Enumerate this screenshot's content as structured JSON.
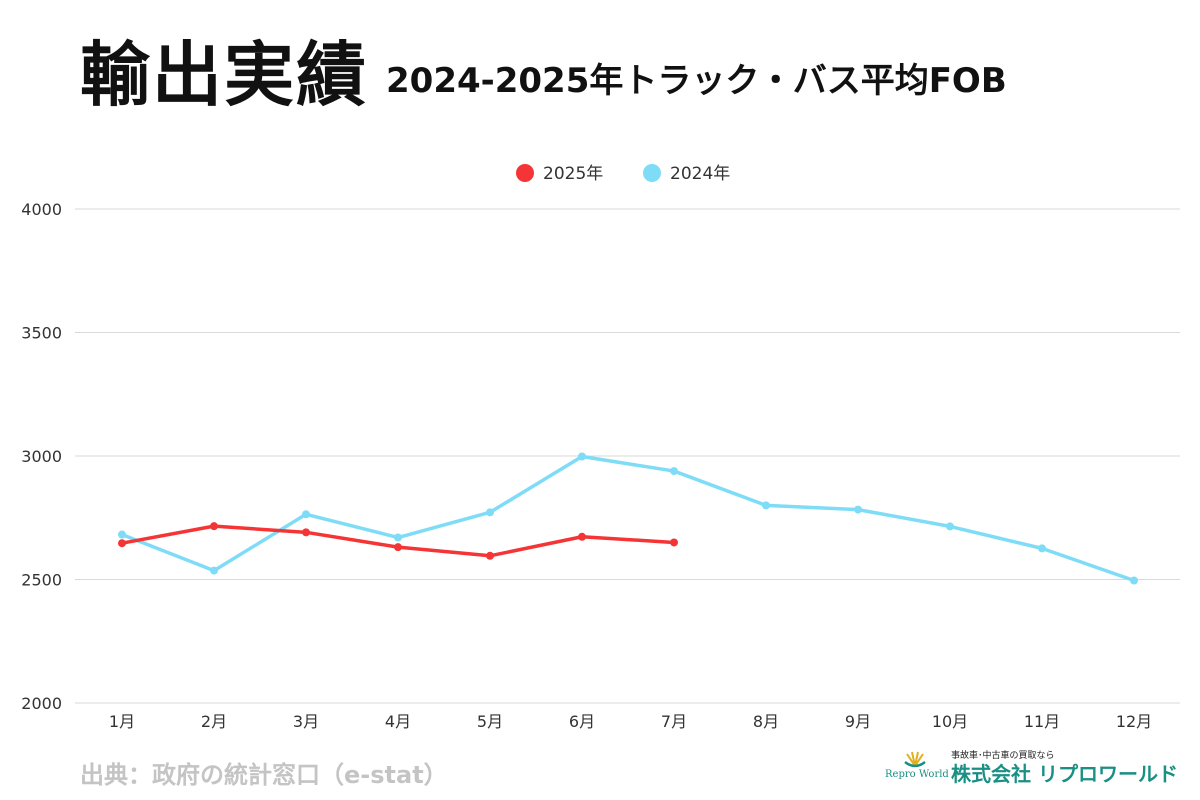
{
  "header": {
    "title": "輸出実績",
    "subtitle": "2024-2025年トラック・バス平均FOB"
  },
  "footer": {
    "source": "出典：政府の統計窓口（e-stat）",
    "logo_tagline": "事故車･中古車の買取なら",
    "logo_company": "株式会社 リプロワールド",
    "logo_en": "Repro World"
  },
  "chart_data": {
    "type": "line",
    "categories": [
      "1月",
      "2月",
      "3月",
      "4月",
      "5月",
      "6月",
      "7月",
      "8月",
      "9月",
      "10月",
      "11月",
      "12月"
    ],
    "ylim": [
      2000,
      4000
    ],
    "yticks": [
      2000,
      2500,
      3000,
      3500,
      4000
    ],
    "grid": true,
    "legend": "top-center",
    "series": [
      {
        "name": "2025年",
        "color": "#f53535",
        "values": [
          2647,
          2716,
          2691,
          2631,
          2596,
          2673,
          2650,
          null,
          null,
          null,
          null,
          null
        ]
      },
      {
        "name": "2024年",
        "color": "#7fdcf7",
        "values": [
          2682,
          2536,
          2764,
          2670,
          2772,
          2998,
          2939,
          2800,
          2783,
          2715,
          2626,
          2496
        ]
      }
    ]
  }
}
